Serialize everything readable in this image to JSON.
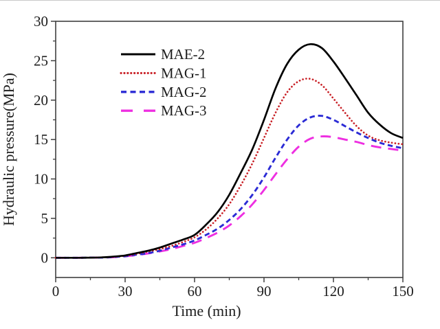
{
  "chart_data": {
    "type": "line",
    "title": "",
    "xlabel": "Time (min)",
    "ylabel": "Hydraulic pressure(MPa)",
    "xlim": [
      0,
      150
    ],
    "ylim": [
      -2.5,
      30
    ],
    "x_ticks": [
      0,
      30,
      60,
      90,
      120,
      150
    ],
    "y_ticks": [
      0,
      5,
      10,
      15,
      20,
      25,
      30
    ],
    "x_minor_ticks": [
      15,
      45,
      75,
      105,
      135
    ],
    "y_minor_ticks": [
      2.5,
      7.5,
      12.5,
      17.5,
      22.5,
      27.5
    ],
    "grid": false,
    "legend_position": "inside-upper-left",
    "frame_color": "#3f3f3f",
    "text_color": "#1c1c1c",
    "x": [
      0,
      5,
      10,
      15,
      20,
      25,
      30,
      35,
      40,
      45,
      50,
      55,
      60,
      65,
      70,
      75,
      80,
      85,
      90,
      95,
      100,
      105,
      110,
      115,
      120,
      125,
      130,
      135,
      140,
      145,
      150
    ],
    "series": [
      {
        "name": "MAE-2",
        "color": "#000000",
        "style": "solid",
        "values": [
          0,
          0,
          0,
          0.02,
          0.05,
          0.15,
          0.3,
          0.6,
          0.9,
          1.3,
          1.8,
          2.3,
          2.9,
          4.2,
          5.8,
          8.0,
          10.8,
          13.8,
          17.5,
          21.5,
          24.6,
          26.4,
          27.1,
          26.6,
          24.9,
          22.8,
          20.6,
          18.4,
          16.9,
          15.8,
          15.2
        ]
      },
      {
        "name": "MAG-1",
        "color": "#c92127",
        "style": "dotted",
        "values": [
          0,
          0,
          0,
          0.02,
          0.05,
          0.12,
          0.25,
          0.5,
          0.8,
          1.1,
          1.5,
          2.0,
          2.6,
          3.6,
          5.0,
          6.8,
          9.2,
          12.0,
          15.2,
          18.4,
          21.0,
          22.4,
          22.7,
          21.9,
          20.2,
          18.4,
          16.7,
          15.5,
          14.9,
          14.6,
          14.4
        ]
      },
      {
        "name": "MAG-2",
        "color": "#2b2bd5",
        "style": "dashed",
        "values": [
          0,
          0,
          0,
          0.02,
          0.03,
          0.1,
          0.2,
          0.4,
          0.6,
          0.9,
          1.3,
          1.7,
          2.2,
          2.9,
          3.7,
          4.8,
          6.2,
          8.0,
          10.2,
          12.7,
          15.0,
          16.8,
          17.8,
          18.0,
          17.5,
          16.7,
          15.9,
          15.2,
          14.6,
          14.2,
          13.9
        ]
      },
      {
        "name": "MAG-3",
        "color": "#ee2fe1",
        "style": "longdash",
        "values": [
          0,
          0,
          0,
          0.02,
          0.03,
          0.08,
          0.18,
          0.35,
          0.55,
          0.8,
          1.1,
          1.5,
          1.9,
          2.5,
          3.2,
          4.1,
          5.3,
          6.8,
          8.6,
          10.6,
          12.5,
          14.1,
          15.1,
          15.4,
          15.3,
          15.0,
          14.7,
          14.3,
          14.0,
          13.8,
          13.6
        ]
      }
    ]
  }
}
